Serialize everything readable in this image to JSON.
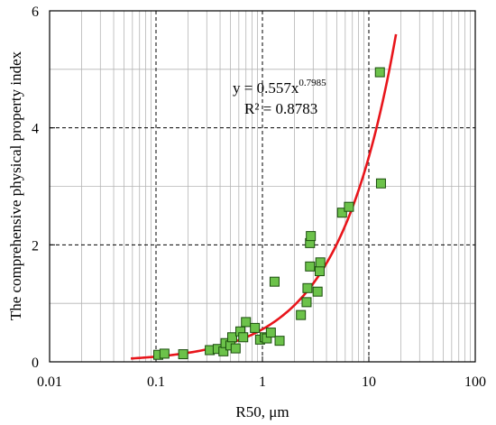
{
  "chart_data": {
    "type": "scatter",
    "title": "",
    "xlabel": "R50, μm",
    "ylabel": "The comprehensive physical property index",
    "x_scale": "log",
    "xlim": [
      0.01,
      100
    ],
    "ylim": [
      0,
      6
    ],
    "x_tick_labels": [
      "0.01",
      "0.1",
      "1",
      "10",
      "100"
    ],
    "x_tick_values": [
      0.01,
      0.1,
      1,
      10,
      100
    ],
    "y_tick_labels": [
      "0",
      "2",
      "4",
      "6"
    ],
    "y_tick_values": [
      0,
      2,
      4,
      6
    ],
    "grid": true,
    "legend": "none",
    "series": [
      {
        "kind": "points",
        "color": "#6cc24a",
        "edge_color": "#1b4d0e",
        "points": [
          [
            0.105,
            0.12
          ],
          [
            0.12,
            0.14
          ],
          [
            0.18,
            0.13
          ],
          [
            0.32,
            0.2
          ],
          [
            0.38,
            0.22
          ],
          [
            0.43,
            0.18
          ],
          [
            0.45,
            0.32
          ],
          [
            0.5,
            0.28
          ],
          [
            0.52,
            0.42
          ],
          [
            0.56,
            0.23
          ],
          [
            0.62,
            0.52
          ],
          [
            0.66,
            0.42
          ],
          [
            0.7,
            0.68
          ],
          [
            0.85,
            0.58
          ],
          [
            0.95,
            0.38
          ],
          [
            1.05,
            0.42
          ],
          [
            1.1,
            0.4
          ],
          [
            1.2,
            0.5
          ],
          [
            1.3,
            1.37
          ],
          [
            1.45,
            0.36
          ],
          [
            2.3,
            0.8
          ],
          [
            2.6,
            1.02
          ],
          [
            2.65,
            1.26
          ],
          [
            2.8,
            1.63
          ],
          [
            2.8,
            2.03
          ],
          [
            2.85,
            2.15
          ],
          [
            3.3,
            1.2
          ],
          [
            3.45,
            1.55
          ],
          [
            3.5,
            1.7
          ],
          [
            5.6,
            2.55
          ],
          [
            6.5,
            2.65
          ],
          [
            12.7,
            4.95
          ],
          [
            13.0,
            3.05
          ]
        ]
      },
      {
        "kind": "fit",
        "color": "#e8151b",
        "a": 0.557,
        "b": 0.7985,
        "x_range": [
          0.058,
          18
        ]
      }
    ],
    "annotation": {
      "eq_main": "y = 0.557x",
      "eq_exp": "0.7985",
      "r2": "R² = 0.8783"
    }
  }
}
